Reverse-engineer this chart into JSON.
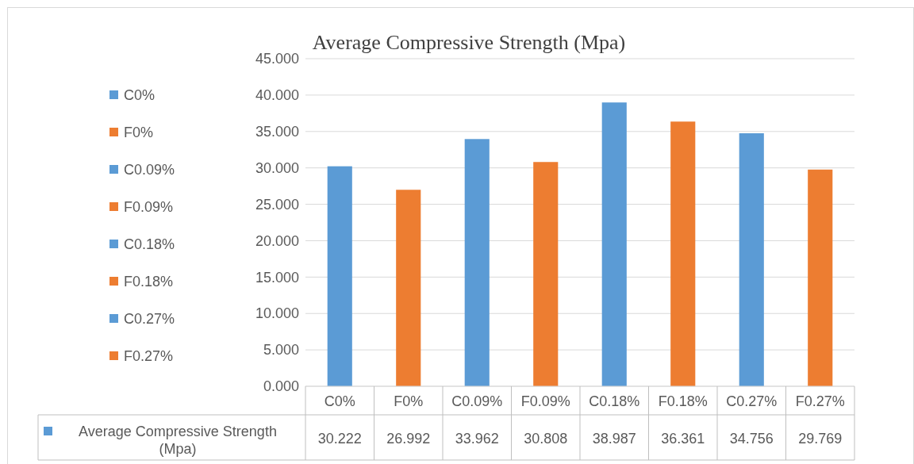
{
  "chart_data": {
    "type": "bar",
    "title": "Average Compressive Strength (Mpa)",
    "categories": [
      "C0%",
      "F0%",
      "C0.09%",
      "F0.09%",
      "C0.18%",
      "F0.18%",
      "C0.27%",
      "F0.27%"
    ],
    "series": [
      {
        "name": "Average Compressive Strength (Mpa)",
        "color": "#5b9bd5",
        "colors": [
          "#5b9bd5",
          "#ed7d31",
          "#5b9bd5",
          "#ed7d31",
          "#5b9bd5",
          "#ed7d31",
          "#5b9bd5",
          "#ed7d31"
        ],
        "values": [
          30.222,
          26.992,
          33.962,
          30.808,
          38.987,
          36.361,
          34.756,
          29.769
        ]
      }
    ],
    "ylim": [
      0,
      45
    ],
    "yticks": [
      {
        "value": 0,
        "label": "0.000"
      },
      {
        "value": 5,
        "label": "5.000"
      },
      {
        "value": 10,
        "label": "10.000"
      },
      {
        "value": 15,
        "label": "15.000"
      },
      {
        "value": 20,
        "label": "20.000"
      },
      {
        "value": 25,
        "label": "25.000"
      },
      {
        "value": 30,
        "label": "30.000"
      },
      {
        "value": 35,
        "label": "35.000"
      },
      {
        "value": 40,
        "label": "40.000"
      },
      {
        "value": 45,
        "label": "45.000"
      }
    ],
    "grid": "y",
    "legend": "left",
    "data_labels": true
  }
}
